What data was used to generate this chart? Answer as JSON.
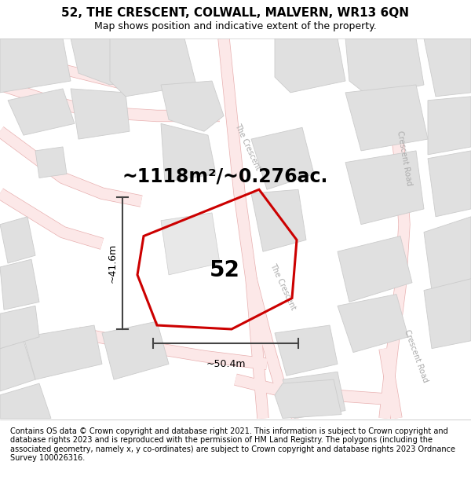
{
  "title": "52, THE CRESCENT, COLWALL, MALVERN, WR13 6QN",
  "subtitle": "Map shows position and indicative extent of the property.",
  "area_text": "~1118m²/~0.276ac.",
  "property_number": "52",
  "width_label": "~50.4m",
  "height_label": "~41.6m",
  "footer": "Contains OS data © Crown copyright and database right 2021. This information is subject to Crown copyright and database rights 2023 and is reproduced with the permission of HM Land Registry. The polygons (including the associated geometry, namely x, y co-ordinates) are subject to Crown copyright and database rights 2023 Ordnance Survey 100026316.",
  "bg_color": "#ffffff",
  "road_fill": "#fce8e8",
  "road_stroke": "#e8b0b0",
  "road_lw": 0.7,
  "building_fill": "#e0e0e0",
  "building_stroke": "#cccccc",
  "building_lw": 0.6,
  "highlight_color": "#cc0000",
  "highlight_lw": 2.2,
  "title_fontsize": 11,
  "subtitle_fontsize": 9,
  "area_fontsize": 17,
  "label_fontsize": 9,
  "footer_fontsize": 7.0,
  "number_fontsize": 20,
  "road_label_color": "#aaaaaa",
  "road_label_size": 7
}
